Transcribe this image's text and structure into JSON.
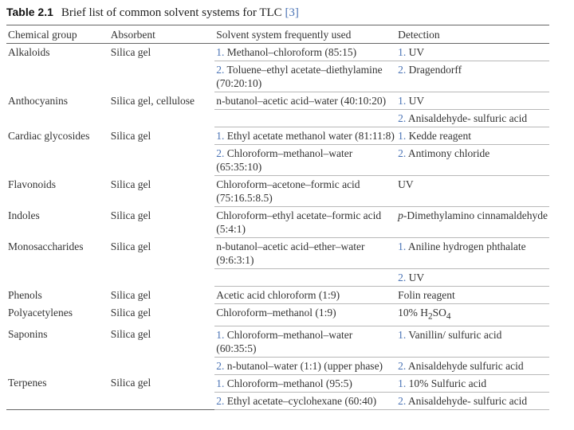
{
  "caption": {
    "label": "Table 2.1",
    "title": "Brief list of common solvent systems for TLC",
    "ref": "[3]"
  },
  "headers": [
    "Chemical group",
    "Absorbent",
    "Solvent system frequently used",
    "Detection"
  ],
  "rows": [
    {
      "group": "Alkaloids",
      "absorbent": "Silica gel",
      "entries": [
        {
          "solvent": {
            "num": "1.",
            "text": "Methanol–chloroform (85:15)"
          },
          "detection": {
            "num": "1.",
            "text": "UV"
          }
        },
        {
          "solvent": {
            "num": "2.",
            "text": "Toluene–ethyl acetate–diethylamine (70:20:10)"
          },
          "detection": {
            "num": "2.",
            "text": "Dragendorff"
          }
        }
      ]
    },
    {
      "group": "Anthocyanins",
      "absorbent": "Silica gel, cellulose",
      "entries": [
        {
          "solvent": {
            "text": "n-butanol–acetic acid–water (40:10:20)"
          },
          "detection": {
            "num": "1.",
            "text": "UV"
          }
        },
        {
          "solvent": null,
          "detection": {
            "num": "2.",
            "text": "Anisaldehyde- sulfuric acid"
          }
        }
      ]
    },
    {
      "group": "Cardiac glycosides",
      "absorbent": "Silica gel",
      "entries": [
        {
          "solvent": {
            "num": "1.",
            "text": "Ethyl acetate  methanol  water (81:11:8)"
          },
          "detection": {
            "num": "1.",
            "text": "Kedde reagent"
          }
        },
        {
          "solvent": {
            "num": "2.",
            "text": "Chloroform–methanol–water (65:35:10)"
          },
          "detection": {
            "num": "2.",
            "text": "Antimony chloride"
          }
        }
      ]
    },
    {
      "group": "Flavonoids",
      "absorbent": "Silica gel",
      "entries": [
        {
          "solvent": {
            "text": "Chloroform–acetone–formic acid (75:16.5:8.5)"
          },
          "detection": {
            "text": "UV"
          }
        }
      ]
    },
    {
      "group": "Indoles",
      "absorbent": "Silica gel",
      "entries": [
        {
          "solvent": {
            "text": "Chloroform–ethyl acetate–formic acid (5:4:1)"
          },
          "detection": {
            "italic_prefix": "p",
            "text": "-Dimethylamino cinnamaldehyde"
          }
        }
      ]
    },
    {
      "group": "Monosaccharides",
      "absorbent": "Silica gel",
      "entries": [
        {
          "solvent": {
            "text": "n-butanol–acetic acid–ether–water (9:6:3:1)"
          },
          "detection": {
            "num": "1.",
            "text": "Aniline hydrogen phthalate"
          }
        },
        {
          "solvent": null,
          "detection": {
            "num": "2.",
            "text": "UV"
          }
        }
      ]
    },
    {
      "group": "Phenols",
      "absorbent": "Silica gel",
      "entries": [
        {
          "solvent": {
            "text": "Acetic acid  chloroform (1:9)"
          },
          "detection": {
            "text": "Folin reagent"
          }
        }
      ]
    },
    {
      "group": "Polyacetylenes",
      "absorbent": "Silica gel",
      "entries": [
        {
          "solvent": {
            "text": "Chloroform–methanol (1:9)"
          },
          "detection": {
            "text": "10% H",
            "sub1": "2",
            "mid": "SO",
            "sub2": "4"
          }
        }
      ]
    },
    {
      "group": "Saponins",
      "absorbent": "Silica gel",
      "entries": [
        {
          "solvent": {
            "num": "1.",
            "text": "Chloroform–methanol–water (60:35:5)"
          },
          "detection": {
            "num": "1.",
            "text": "Vanillin/ sulfuric acid"
          }
        },
        {
          "solvent": {
            "num": "2.",
            "text": "n-butanol–water (1:1) (upper phase)"
          },
          "detection": {
            "num": "2.",
            "text": "Anisaldehyde sulfuric acid"
          }
        }
      ]
    },
    {
      "group": "Terpenes",
      "absorbent": "Silica gel",
      "entries": [
        {
          "solvent": {
            "num": "1.",
            "text": "Chloroform–methanol (95:5)"
          },
          "detection": {
            "num": "1.",
            "text": "10% Sulfuric acid"
          }
        },
        {
          "solvent": {
            "num": "2.",
            "text": "Ethyl acetate–cyclohexane (60:40)"
          },
          "detection": {
            "num": "2.",
            "text": "Anisaldehyde- sulfuric acid"
          }
        }
      ]
    }
  ]
}
